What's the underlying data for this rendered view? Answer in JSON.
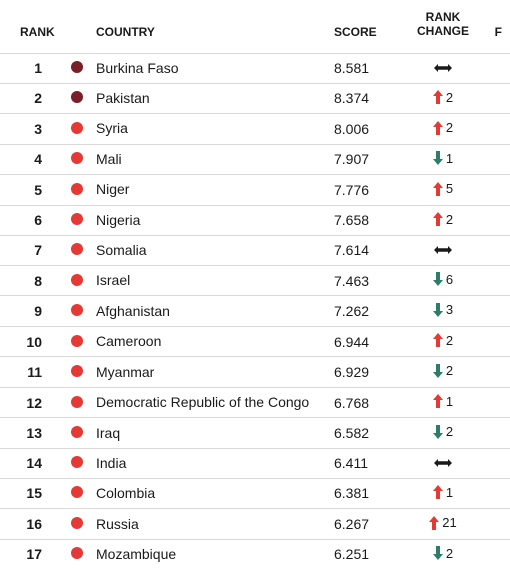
{
  "colors": {
    "text": "#1a1a1a",
    "divider": "#d9d9d9",
    "dot_dark": "#7a1f28",
    "dot_red": "#e53935",
    "arrow_up": "#e53935",
    "arrow_down": "#2e7d6b",
    "arrow_same": "#1a1a1a"
  },
  "headers": {
    "rank": "RANK",
    "country": "COUNTRY",
    "score": "SCORE",
    "change_line1": "RANK",
    "change_line2": "CHANGE",
    "tail": "F"
  },
  "rows": [
    {
      "rank": "1",
      "dot": "dark",
      "country": "Burkina Faso",
      "score": "8.581",
      "dir": "same",
      "delta": ""
    },
    {
      "rank": "2",
      "dot": "dark",
      "country": "Pakistan",
      "score": "8.374",
      "dir": "up",
      "delta": "2"
    },
    {
      "rank": "3",
      "dot": "red",
      "country": "Syria",
      "score": "8.006",
      "dir": "up",
      "delta": "2"
    },
    {
      "rank": "4",
      "dot": "red",
      "country": "Mali",
      "score": "7.907",
      "dir": "down",
      "delta": "1"
    },
    {
      "rank": "5",
      "dot": "red",
      "country": "Niger",
      "score": "7.776",
      "dir": "up",
      "delta": "5"
    },
    {
      "rank": "6",
      "dot": "red",
      "country": "Nigeria",
      "score": "7.658",
      "dir": "up",
      "delta": "2"
    },
    {
      "rank": "7",
      "dot": "red",
      "country": "Somalia",
      "score": "7.614",
      "dir": "same",
      "delta": ""
    },
    {
      "rank": "8",
      "dot": "red",
      "country": "Israel",
      "score": "7.463",
      "dir": "down",
      "delta": "6"
    },
    {
      "rank": "9",
      "dot": "red",
      "country": "Afghanistan",
      "score": "7.262",
      "dir": "down",
      "delta": "3"
    },
    {
      "rank": "10",
      "dot": "red",
      "country": "Cameroon",
      "score": "6.944",
      "dir": "up",
      "delta": "2"
    },
    {
      "rank": "11",
      "dot": "red",
      "country": "Myanmar",
      "score": "6.929",
      "dir": "down",
      "delta": "2"
    },
    {
      "rank": "12",
      "dot": "red",
      "country": "Democratic Republic of the Congo",
      "score": "6.768",
      "dir": "up",
      "delta": "1"
    },
    {
      "rank": "13",
      "dot": "red",
      "country": "Iraq",
      "score": "6.582",
      "dir": "down",
      "delta": "2"
    },
    {
      "rank": "14",
      "dot": "red",
      "country": "India",
      "score": "6.411",
      "dir": "same",
      "delta": ""
    },
    {
      "rank": "15",
      "dot": "red",
      "country": "Colombia",
      "score": "6.381",
      "dir": "up",
      "delta": "1"
    },
    {
      "rank": "16",
      "dot": "red",
      "country": "Russia",
      "score": "6.267",
      "dir": "up",
      "delta": "21"
    },
    {
      "rank": "17",
      "dot": "red",
      "country": "Mozambique",
      "score": "6.251",
      "dir": "down",
      "delta": "2"
    }
  ]
}
